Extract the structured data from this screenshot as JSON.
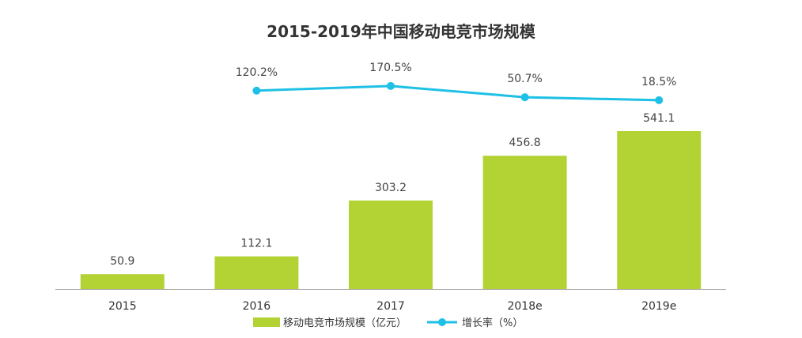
{
  "chart_data": {
    "type": "bar",
    "title": "2015-2019年中国移动电竞市场规模",
    "categories": [
      "2015",
      "2016",
      "2017",
      "2018e",
      "2019e"
    ],
    "series": [
      {
        "name": "移动电竞市场规模（亿元）",
        "type": "bar",
        "values": [
          50.9,
          112.1,
          303.2,
          456.8,
          541.1
        ],
        "labels": [
          "50.9",
          "112.1",
          "303.2",
          "456.8",
          "541.1"
        ],
        "color": "#b3d335"
      },
      {
        "name": "增长率（%）",
        "type": "line",
        "values": [
          null,
          120.2,
          170.5,
          50.7,
          18.5
        ],
        "labels": [
          "",
          "120.2%",
          "170.5%",
          "50.7%",
          "18.5%"
        ],
        "color": "#1ec0e6"
      }
    ],
    "ylim": [
      0,
      600
    ],
    "grid": false,
    "legend_position": "bottom"
  },
  "colors": {
    "axis": "#aaaaaa"
  }
}
